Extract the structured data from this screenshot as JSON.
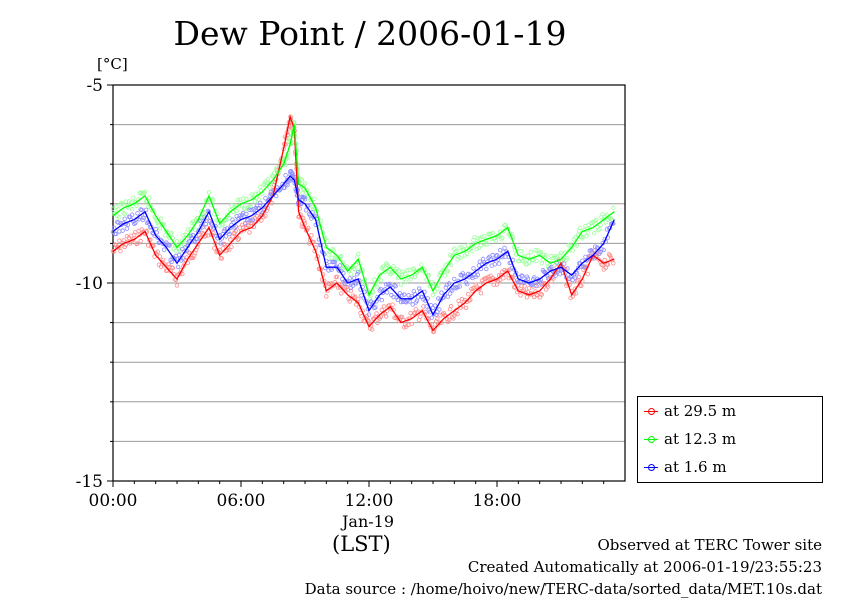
{
  "title": "Dew Point / 2006-01-19",
  "unit": "[°C]",
  "x_label": "(LST)",
  "date_label": "Jan-19",
  "footer": {
    "line1": "Observed at TERC Tower site",
    "line2": "Created Automatically at 2006-01-19/23:55:23",
    "line3": "Data source : /home/hoivo/new/TERC-data/sorted_data/MET.10s.dat"
  },
  "legend": [
    {
      "label": "at 29.5 m",
      "color": "#ff0000"
    },
    {
      "label": "at 12.3 m",
      "color": "#00ff00"
    },
    {
      "label": "at 1.6 m",
      "color": "#0000ff"
    }
  ],
  "chart_data": {
    "type": "line",
    "title": "Dew Point / 2006-01-19",
    "ylabel": "[°C]",
    "xlabel": "(LST)",
    "xlim": [
      0,
      24
    ],
    "ylim": [
      -15,
      -5
    ],
    "x_ticks": [
      "00:00",
      "06:00",
      "12:00",
      "18:00"
    ],
    "y_ticks": [
      "-5",
      "-10",
      "-15"
    ],
    "grid": true,
    "legend_position": "bottom-right-outside",
    "series": [
      {
        "name": "at 29.5 m",
        "color": "#ff0000",
        "x": [
          0,
          0.5,
          1,
          1.5,
          2,
          2.5,
          3,
          3.5,
          4,
          4.5,
          5,
          5.5,
          6,
          6.5,
          7,
          7.5,
          8,
          8.3,
          8.5,
          8.7,
          9,
          9.5,
          10,
          10.5,
          11,
          11.5,
          12,
          12.5,
          13,
          13.5,
          14,
          14.5,
          15,
          15.5,
          16,
          16.5,
          17,
          17.5,
          18,
          18.5,
          19,
          19.5,
          20,
          20.5,
          21,
          21.5,
          22,
          22.5,
          23,
          23.5
        ],
        "y": [
          -9.2,
          -9.0,
          -8.9,
          -8.7,
          -9.3,
          -9.6,
          -9.9,
          -9.4,
          -9.0,
          -8.6,
          -9.3,
          -9.0,
          -8.7,
          -8.6,
          -8.3,
          -7.8,
          -6.6,
          -5.8,
          -6.1,
          -8.2,
          -8.6,
          -9.2,
          -10.2,
          -10.0,
          -10.3,
          -10.5,
          -11.1,
          -10.8,
          -10.6,
          -11.0,
          -10.9,
          -10.7,
          -11.2,
          -10.9,
          -10.7,
          -10.5,
          -10.2,
          -10.0,
          -9.9,
          -9.7,
          -10.2,
          -10.3,
          -10.2,
          -9.9,
          -9.5,
          -10.3,
          -9.9,
          -9.3,
          -9.5,
          -9.4
        ]
      },
      {
        "name": "at 12.3 m",
        "color": "#00ff00",
        "x": [
          0,
          0.5,
          1,
          1.5,
          2,
          2.5,
          3,
          3.5,
          4,
          4.5,
          5,
          5.5,
          6,
          6.5,
          7,
          7.5,
          8,
          8.3,
          8.5,
          8.7,
          9,
          9.5,
          10,
          10.5,
          11,
          11.5,
          12,
          12.5,
          13,
          13.5,
          14,
          14.5,
          15,
          15.5,
          16,
          16.5,
          17,
          17.5,
          18,
          18.5,
          19,
          19.5,
          20,
          20.5,
          21,
          21.5,
          22,
          22.5,
          23,
          23.5
        ],
        "y": [
          -8.3,
          -8.1,
          -8.0,
          -7.8,
          -8.3,
          -8.7,
          -9.1,
          -8.8,
          -8.4,
          -7.8,
          -8.5,
          -8.2,
          -8.0,
          -7.9,
          -7.7,
          -7.4,
          -7.0,
          -6.5,
          -6.0,
          -7.5,
          -7.6,
          -8.1,
          -9.1,
          -9.3,
          -9.7,
          -9.4,
          -10.3,
          -9.8,
          -9.6,
          -9.9,
          -9.8,
          -9.6,
          -10.2,
          -9.7,
          -9.3,
          -9.2,
          -9.0,
          -8.9,
          -8.8,
          -8.6,
          -9.3,
          -9.4,
          -9.3,
          -9.5,
          -9.4,
          -9.1,
          -8.7,
          -8.6,
          -8.4,
          -8.2
        ]
      },
      {
        "name": "at 1.6 m",
        "color": "#0000ff",
        "x": [
          0,
          0.5,
          1,
          1.5,
          2,
          2.5,
          3,
          3.5,
          4,
          4.5,
          5,
          5.5,
          6,
          6.5,
          7,
          7.5,
          8,
          8.3,
          8.5,
          8.7,
          9,
          9.5,
          10,
          10.5,
          11,
          11.5,
          12,
          12.5,
          13,
          13.5,
          14,
          14.5,
          15,
          15.5,
          16,
          16.5,
          17,
          17.5,
          18,
          18.5,
          19,
          19.5,
          20,
          20.5,
          21,
          21.5,
          22,
          22.5,
          23,
          23.5
        ],
        "y": [
          -8.7,
          -8.5,
          -8.4,
          -8.2,
          -8.8,
          -9.1,
          -9.5,
          -9.1,
          -8.7,
          -8.2,
          -8.9,
          -8.6,
          -8.4,
          -8.3,
          -8.1,
          -7.8,
          -7.5,
          -7.3,
          -7.4,
          -7.9,
          -8.0,
          -8.4,
          -9.6,
          -9.6,
          -10.0,
          -9.9,
          -10.7,
          -10.3,
          -10.1,
          -10.4,
          -10.4,
          -10.2,
          -10.8,
          -10.3,
          -10.0,
          -9.9,
          -9.7,
          -9.5,
          -9.4,
          -9.2,
          -9.9,
          -10.0,
          -9.9,
          -9.7,
          -9.6,
          -9.8,
          -9.5,
          -9.3,
          -9.0,
          -8.4
        ]
      }
    ]
  }
}
